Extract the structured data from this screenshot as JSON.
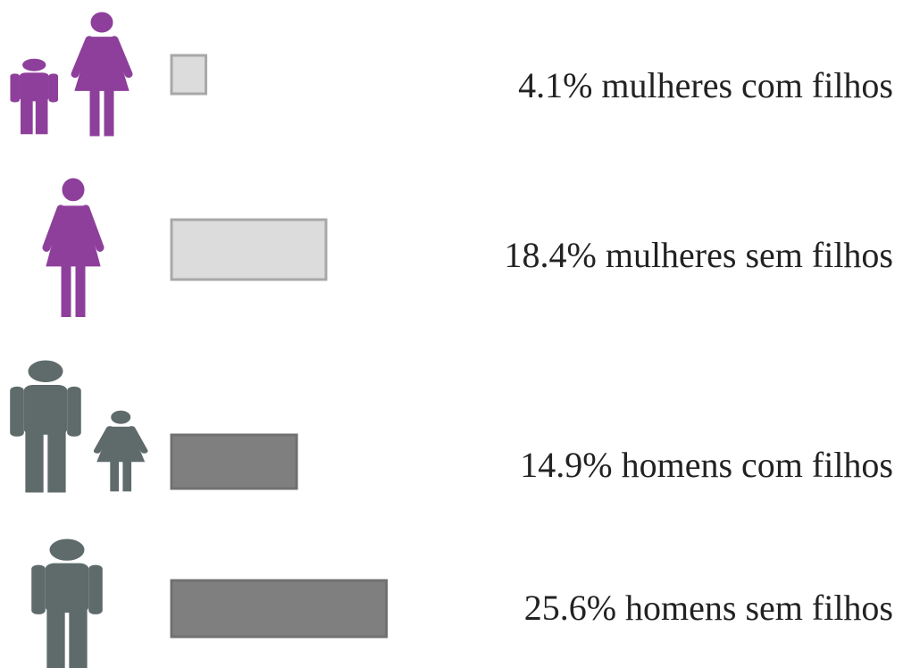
{
  "chart_data": {
    "type": "bar",
    "orientation": "horizontal",
    "categories": [
      "mulheres com filhos",
      "mulheres sem filhos",
      "homens com filhos",
      "homens sem filhos"
    ],
    "values": [
      4.1,
      18.4,
      14.9,
      25.6
    ],
    "value_labels": [
      "4.1%",
      "18.4%",
      "14.9%",
      "25.6%"
    ],
    "colors": [
      "#dcdcdc",
      "#dcdcdc",
      "#7f7f7f",
      "#7f7f7f"
    ]
  }
}
